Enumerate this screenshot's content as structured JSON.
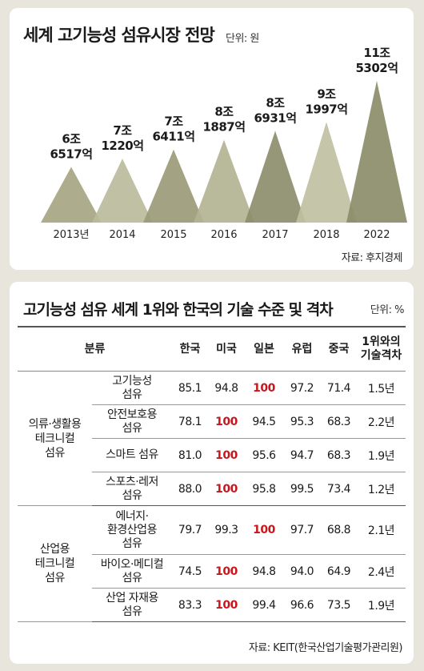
{
  "chart_data": {
    "type": "area",
    "title": "세계 고기능성 섬유시장 전망",
    "unit": "단위: 원",
    "categories": [
      "2013년",
      "2014",
      "2015",
      "2016",
      "2017",
      "2018",
      "2022"
    ],
    "value_labels": [
      [
        "6조",
        "6517억"
      ],
      [
        "7조",
        "1220억"
      ],
      [
        "7조",
        "6411억"
      ],
      [
        "8조",
        "1887억"
      ],
      [
        "8조",
        "6931억"
      ],
      [
        "9조",
        "1997억"
      ],
      [
        "11조",
        "5302억"
      ]
    ],
    "values": [
      6.6517,
      7.122,
      7.6411,
      8.1887,
      8.6931,
      9.1997,
      11.5302
    ],
    "value_unit": "조 원",
    "colors": [
      "#a6a683",
      "#bbbb9c",
      "#9b9b7a",
      "#b3b394",
      "#8d8d6c",
      "#c0c0a2",
      "#8b8d69"
    ],
    "source": "자료: 후지경제"
  },
  "table": {
    "title": "고기능성 섬유 세계 1위와 한국의 기술 수준 및 격차",
    "unit": "단위: %",
    "headers": {
      "category": "분류",
      "korea": "한국",
      "usa": "미국",
      "japan": "일본",
      "europe": "유럽",
      "china": "중국",
      "gap_line1": "1위와의",
      "gap_line2": "기술격차"
    },
    "groups": [
      {
        "name_lines": [
          "의류·생활용",
          "테크니컬",
          "섬유"
        ],
        "rows": [
          {
            "name_lines": [
              "고기능성",
              "섬유"
            ],
            "korea": "85.1",
            "usa": "94.8",
            "japan": "100",
            "europe": "97.2",
            "china": "71.4",
            "gap": "1.5년"
          },
          {
            "name_lines": [
              "안전보호용",
              "섬유"
            ],
            "korea": "78.1",
            "usa": "100",
            "japan": "94.5",
            "europe": "95.3",
            "china": "68.3",
            "gap": "2.2년"
          },
          {
            "name_lines": [
              "스마트 섬유"
            ],
            "korea": "81.0",
            "usa": "100",
            "japan": "95.6",
            "europe": "94.7",
            "china": "68.3",
            "gap": "1.9년"
          },
          {
            "name_lines": [
              "스포츠·레저",
              "섬유"
            ],
            "korea": "88.0",
            "usa": "100",
            "japan": "95.8",
            "europe": "99.5",
            "china": "73.4",
            "gap": "1.2년"
          }
        ]
      },
      {
        "name_lines": [
          "산업용",
          "테크니컬",
          "섬유"
        ],
        "rows": [
          {
            "name_lines": [
              "에너지·",
              "환경산업용",
              "섬유"
            ],
            "korea": "79.7",
            "usa": "99.3",
            "japan": "100",
            "europe": "97.7",
            "china": "68.8",
            "gap": "2.1년"
          },
          {
            "name_lines": [
              "바이오·메디컬",
              "섬유"
            ],
            "korea": "74.5",
            "usa": "100",
            "japan": "94.8",
            "europe": "94.0",
            "china": "64.9",
            "gap": "2.4년"
          },
          {
            "name_lines": [
              "산업 자재용",
              "섬유"
            ],
            "korea": "83.3",
            "usa": "100",
            "japan": "99.4",
            "europe": "96.6",
            "china": "73.5",
            "gap": "1.9년"
          }
        ]
      }
    ],
    "source": "자료: KEIT(한국산업기술평가관리원)"
  }
}
